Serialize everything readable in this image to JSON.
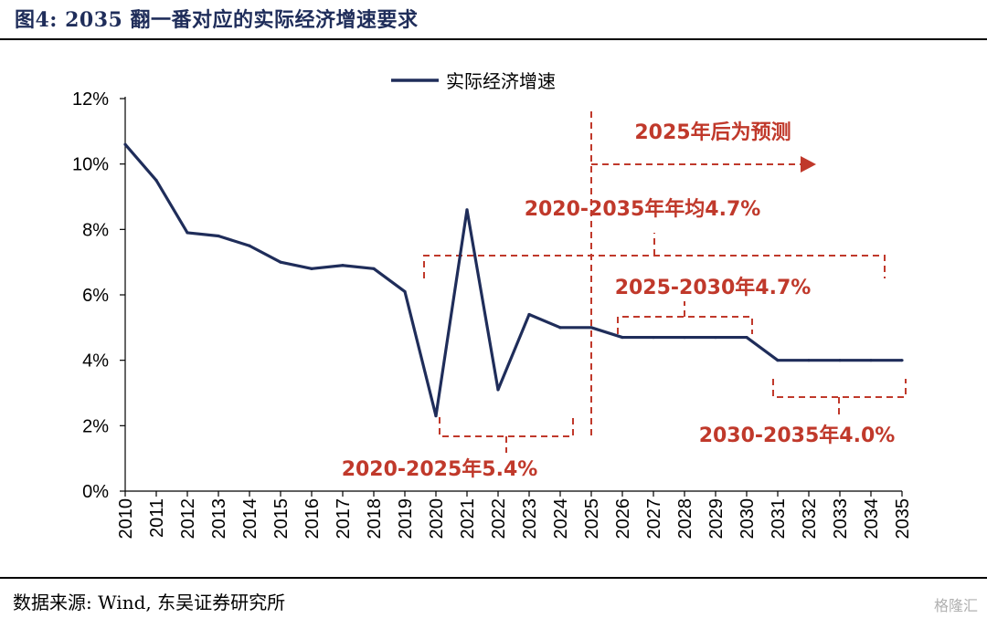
{
  "figure": {
    "title": "图4: 2035 翻一番对应的实际经济增速要求",
    "source": "数据来源: Wind, 东吴证券研究所",
    "watermark": "格隆汇"
  },
  "colors": {
    "series": "#1f2d5a",
    "annotation": "#c0392b"
  },
  "chart_data": {
    "type": "line",
    "title": "",
    "xlabel": "",
    "ylabel": "",
    "ylim": [
      0,
      12
    ],
    "y_ticks": [
      "0%",
      "2%",
      "4%",
      "6%",
      "8%",
      "10%",
      "12%"
    ],
    "grid": false,
    "legend_placement": "top-center",
    "x": [
      "2010",
      "2011",
      "2012",
      "2013",
      "2014",
      "2015",
      "2016",
      "2017",
      "2018",
      "2019",
      "2020",
      "2021",
      "2022",
      "2023",
      "2024",
      "2025",
      "2026",
      "2027",
      "2028",
      "2029",
      "2030",
      "2031",
      "2032",
      "2033",
      "2034",
      "2035"
    ],
    "series": [
      {
        "name": "实际经济增速",
        "values": [
          10.6,
          9.5,
          7.9,
          7.8,
          7.5,
          7.0,
          6.8,
          6.9,
          6.8,
          6.1,
          2.3,
          8.6,
          3.1,
          5.4,
          5.0,
          5.0,
          4.7,
          4.7,
          4.7,
          4.7,
          4.7,
          4.0,
          4.0,
          4.0,
          4.0,
          4.0
        ]
      }
    ],
    "annotations": [
      {
        "text": "2025年后为预测"
      },
      {
        "text": "2020-2035年年均4.7%"
      },
      {
        "text": "2025-2030年4.7%"
      },
      {
        "text": "2020-2025年5.4%"
      },
      {
        "text": "2030-2035年4.0%"
      }
    ]
  }
}
